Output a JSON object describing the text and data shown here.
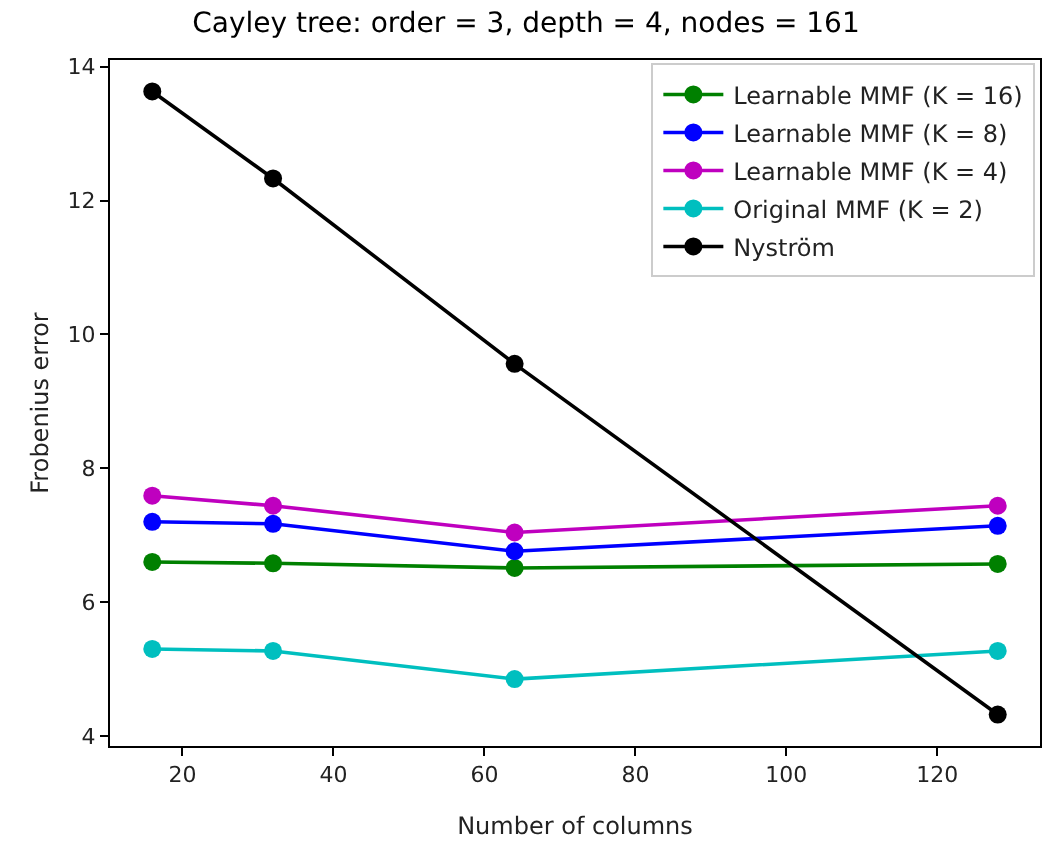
{
  "chart_data": {
    "type": "line",
    "title": "Cayley tree: order = 3, depth = 4, nodes = 161",
    "xlabel": "Number of columns",
    "ylabel": "Frobenius error",
    "x": [
      16,
      32,
      64,
      128
    ],
    "series": [
      {
        "name": "Learnable MMF (K = 16)",
        "color": "#008000",
        "values": [
          6.6,
          6.58,
          6.51,
          6.57
        ]
      },
      {
        "name": "Learnable MMF (K = 8)",
        "color": "#0000ff",
        "values": [
          7.2,
          7.17,
          6.76,
          7.14
        ]
      },
      {
        "name": "Learnable MMF (K = 4)",
        "color": "#bf00bf",
        "values": [
          7.59,
          7.44,
          7.04,
          7.44
        ]
      },
      {
        "name": "Original MMF (K = 2)",
        "color": "#00bfbf",
        "values": [
          5.3,
          5.27,
          4.85,
          5.27
        ]
      },
      {
        "name": "Nyström",
        "color": "#000000",
        "values": [
          13.63,
          12.33,
          9.56,
          4.32
        ]
      }
    ],
    "xlim": [
      10.4,
      133.6
    ],
    "ylim": [
      3.85,
      14.1
    ],
    "xticks": [
      20,
      40,
      60,
      80,
      100,
      120
    ],
    "yticks": [
      4,
      6,
      8,
      10,
      12,
      14
    ],
    "grid": false,
    "legend": "top right",
    "marker": "circle",
    "line_style": "solid"
  }
}
